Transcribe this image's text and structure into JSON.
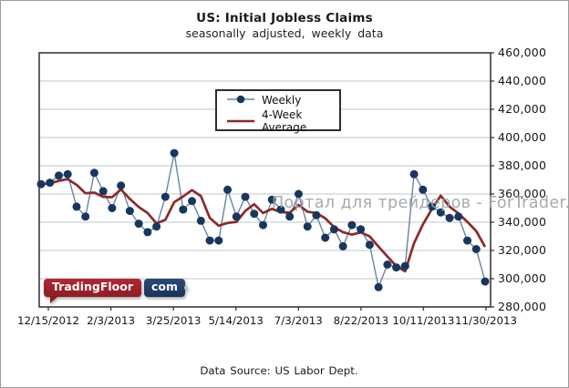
{
  "header": {
    "title": "US: Initial Jobless Claims",
    "subtitle": "seasonally adjusted, weekly data"
  },
  "legend": {
    "items": [
      {
        "label": "Weekly"
      },
      {
        "label": "4-Week Average"
      }
    ]
  },
  "watermark": "Портал для трейдеров - ForTrader.ru",
  "logo": {
    "part1": "TradingFloor",
    "part2": "com"
  },
  "footer": {
    "source": "Data Source: US Labor Dept."
  },
  "axes": {
    "y_tick_labels": [
      "460,000",
      "440,000",
      "420,000",
      "400,000",
      "380,000",
      "360,000",
      "340,000",
      "320,000",
      "300,000",
      "280,000"
    ],
    "x_tick_labels": [
      "12/15/2012",
      "2/3/2013",
      "3/25/2013",
      "5/14/2013",
      "7/3/2013",
      "8/22/2013",
      "10/11/2013",
      "11/30/2013"
    ]
  },
  "chart_data": {
    "type": "line",
    "title": "US: Initial Jobless Claims",
    "subtitle": "seasonally adjusted, weekly data",
    "source_note": "Data Source: US Labor Dept.",
    "grid": true,
    "legend_position": "top-center",
    "x_axis": {
      "tick_labels": [
        "12/15/2012",
        "2/3/2013",
        "3/25/2013",
        "5/14/2013",
        "7/3/2013",
        "8/22/2013",
        "10/11/2013",
        "11/30/2013"
      ],
      "points_span": "51 weekly observations from 12/15/2012 through 11/30/2013"
    },
    "y_axis": {
      "min": 280000,
      "max": 460000,
      "tick_step": 20000
    },
    "series": [
      {
        "name": "Weekly",
        "style": "line+markers",
        "marker_color": "#17375e",
        "line_color": "#6885a3",
        "values": [
          367000,
          368000,
          373000,
          374000,
          351000,
          344000,
          375000,
          362000,
          350000,
          366000,
          348000,
          339000,
          333000,
          337000,
          358000,
          389000,
          349000,
          355000,
          341000,
          327000,
          327000,
          363000,
          344000,
          358000,
          346000,
          338000,
          356000,
          349000,
          344000,
          360000,
          337000,
          345000,
          329000,
          335000,
          323000,
          338000,
          335000,
          324000,
          294000,
          310000,
          308000,
          309000,
          374000,
          363000,
          351000,
          347000,
          343000,
          344000,
          327000,
          321000,
          298000
        ]
      },
      {
        "name": "4-Week Average",
        "style": "line",
        "line_color": "#8e2929",
        "values": [
          367000,
          367500,
          369300,
          370500,
          366500,
          360500,
          361000,
          358000,
          357750,
          363250,
          356500,
          350750,
          346500,
          339250,
          341750,
          354250,
          358250,
          362750,
          358500,
          343000,
          337500,
          339500,
          340250,
          348000,
          352750,
          346500,
          349500,
          347250,
          346750,
          352250,
          347500,
          346500,
          342750,
          336500,
          333000,
          331250,
          332750,
          330000,
          322750,
          315750,
          309000,
          305250,
          325250,
          338500,
          349250,
          358750,
          351000,
          346250,
          340250,
          333750,
          322500
        ]
      }
    ]
  }
}
